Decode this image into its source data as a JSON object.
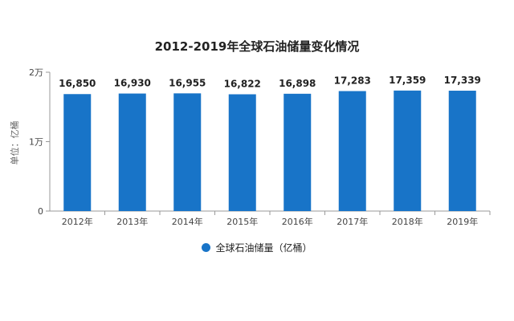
{
  "chart_data": {
    "type": "bar",
    "title": "2012-2019年全球石油储量变化情况",
    "ylabel": "单位：亿桶",
    "categories": [
      "2012年",
      "2013年",
      "2014年",
      "2015年",
      "2016年",
      "2017年",
      "2018年",
      "2019年"
    ],
    "series": [
      {
        "name": "全球石油储量（亿桶）",
        "values": [
          16850,
          16930,
          16955,
          16822,
          16898,
          17283,
          17359,
          17339
        ],
        "labels": [
          "16,850",
          "16,930",
          "16,955",
          "16,822",
          "16,898",
          "17,283",
          "17,359",
          "17,339"
        ]
      }
    ],
    "yticks": [
      {
        "value": 0,
        "label": "0"
      },
      {
        "value": 10000,
        "label": "1万"
      },
      {
        "value": 20000,
        "label": "2万"
      }
    ],
    "ylim": [
      0,
      20000
    ],
    "grid": false,
    "legend": "bottom",
    "colors": {
      "bar": "#1874c8",
      "axis": "#999999"
    }
  }
}
